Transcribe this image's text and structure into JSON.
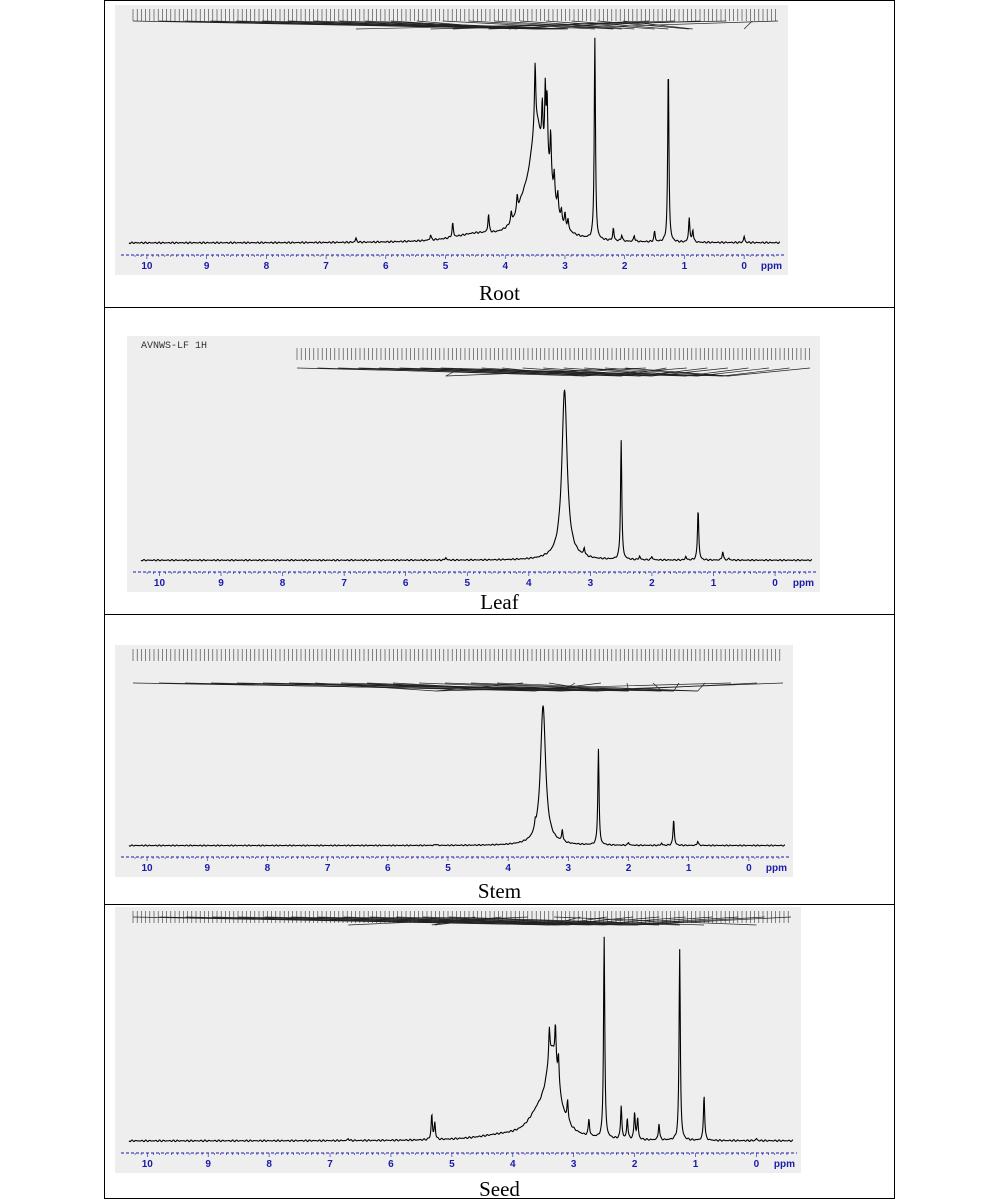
{
  "figure": {
    "colors": {
      "plot_bg": "#eeeeee",
      "trace": "#000000",
      "axis": "#1a1aa8",
      "panel_border": "#000000"
    }
  },
  "chart_data": [
    {
      "type": "line",
      "caption": "Root",
      "xlabel": "ppm",
      "xlim": [
        10.3,
        -0.6
      ],
      "x_ticks": [
        10,
        9,
        8,
        7,
        6,
        5,
        4,
        3,
        2,
        1,
        0
      ],
      "x_reversed": true,
      "grid": false,
      "baseline": 0.01,
      "broad": [
        {
          "x": 3.48,
          "h": 0.48,
          "w": 0.13
        },
        {
          "x": 3.28,
          "h": 0.2,
          "w": 0.14
        },
        {
          "x": 3.7,
          "h": 0.1,
          "w": 0.16
        },
        {
          "x": 4.5,
          "h": 0.035,
          "w": 0.45
        }
      ],
      "peaks": [
        {
          "x": 3.5,
          "h": 0.3
        },
        {
          "x": 3.38,
          "h": 0.22
        },
        {
          "x": 3.33,
          "h": 0.34
        },
        {
          "x": 3.3,
          "h": 0.31
        },
        {
          "x": 3.24,
          "h": 0.22
        },
        {
          "x": 3.18,
          "h": 0.12
        },
        {
          "x": 3.12,
          "h": 0.09
        },
        {
          "x": 3.06,
          "h": 0.05
        },
        {
          "x": 3.0,
          "h": 0.06
        },
        {
          "x": 2.95,
          "h": 0.05
        },
        {
          "x": 3.8,
          "h": 0.07
        },
        {
          "x": 3.9,
          "h": 0.05
        },
        {
          "x": 2.5,
          "h": 0.98
        },
        {
          "x": 2.19,
          "h": 0.06
        },
        {
          "x": 2.05,
          "h": 0.03
        },
        {
          "x": 1.84,
          "h": 0.03
        },
        {
          "x": 1.5,
          "h": 0.05
        },
        {
          "x": 1.27,
          "h": 0.85
        },
        {
          "x": 0.92,
          "h": 0.12
        },
        {
          "x": 0.86,
          "h": 0.06
        },
        {
          "x": 4.88,
          "h": 0.07
        },
        {
          "x": 5.25,
          "h": 0.025
        },
        {
          "x": 4.28,
          "h": 0.09
        },
        {
          "x": 6.5,
          "h": 0.02
        },
        {
          "x": 0.0,
          "h": 0.03
        }
      ],
      "header_text": "",
      "annotation_hint": "dense chemical-shift label strip (values illegible)"
    },
    {
      "type": "line",
      "caption": "Leaf",
      "xlabel": "ppm",
      "xlim": [
        10.3,
        -0.6
      ],
      "x_ticks": [
        10,
        9,
        8,
        7,
        6,
        5,
        4,
        3,
        2,
        1,
        0
      ],
      "x_reversed": true,
      "grid": false,
      "baseline": 0.01,
      "header_text": "AVNWS-LF  1H",
      "broad": [
        {
          "x": 3.42,
          "h": 0.93,
          "w": 0.05
        },
        {
          "x": 3.42,
          "h": 0.04,
          "w": 0.2
        }
      ],
      "peaks": [
        {
          "x": 2.5,
          "h": 0.68
        },
        {
          "x": 3.1,
          "h": 0.04
        },
        {
          "x": 2.2,
          "h": 0.02
        },
        {
          "x": 2.0,
          "h": 0.02
        },
        {
          "x": 1.45,
          "h": 0.02
        },
        {
          "x": 1.25,
          "h": 0.29
        },
        {
          "x": 0.85,
          "h": 0.05
        },
        {
          "x": 0.75,
          "h": 0.01
        },
        {
          "x": 5.35,
          "h": 0.015
        }
      ],
      "annotation_hint": "dense chemical-shift label strip (values illegible)"
    },
    {
      "type": "line",
      "caption": "Stem",
      "xlabel": "ppm",
      "xlim": [
        10.3,
        -0.6
      ],
      "x_ticks": [
        10,
        9,
        8,
        7,
        6,
        5,
        4,
        3,
        2,
        1,
        0
      ],
      "x_reversed": true,
      "grid": false,
      "baseline": 0.01,
      "header_text": "",
      "broad": [
        {
          "x": 3.42,
          "h": 0.92,
          "w": 0.05
        },
        {
          "x": 3.42,
          "h": 0.04,
          "w": 0.2
        }
      ],
      "peaks": [
        {
          "x": 2.5,
          "h": 0.66
        },
        {
          "x": 3.1,
          "h": 0.08
        },
        {
          "x": 3.55,
          "h": 0.05
        },
        {
          "x": 2.0,
          "h": 0.02
        },
        {
          "x": 1.45,
          "h": 0.015
        },
        {
          "x": 1.25,
          "h": 0.18
        },
        {
          "x": 0.85,
          "h": 0.03
        },
        {
          "x": 5.2,
          "h": 0.01
        }
      ],
      "annotation_hint": "dense chemical-shift label strip (values illegible)"
    },
    {
      "type": "line",
      "caption": "Seed",
      "xlabel": "ppm",
      "xlim": [
        10.3,
        -0.6
      ],
      "x_ticks": [
        10,
        9,
        8,
        7,
        6,
        5,
        4,
        3,
        2,
        1,
        0
      ],
      "x_reversed": true,
      "grid": false,
      "baseline": 0.01,
      "header_text": "",
      "broad": [
        {
          "x": 3.35,
          "h": 0.4,
          "w": 0.13
        },
        {
          "x": 3.6,
          "h": 0.08,
          "w": 0.2
        },
        {
          "x": 4.2,
          "h": 0.02,
          "w": 0.5
        }
      ],
      "peaks": [
        {
          "x": 3.4,
          "h": 0.15
        },
        {
          "x": 3.3,
          "h": 0.18
        },
        {
          "x": 3.25,
          "h": 0.14
        },
        {
          "x": 3.1,
          "h": 0.1
        },
        {
          "x": 2.75,
          "h": 0.08
        },
        {
          "x": 2.5,
          "h": 0.97
        },
        {
          "x": 2.22,
          "h": 0.16
        },
        {
          "x": 2.12,
          "h": 0.1
        },
        {
          "x": 2.0,
          "h": 0.13
        },
        {
          "x": 1.95,
          "h": 0.1
        },
        {
          "x": 1.6,
          "h": 0.08
        },
        {
          "x": 1.26,
          "h": 0.92
        },
        {
          "x": 0.86,
          "h": 0.22
        },
        {
          "x": 5.33,
          "h": 0.12
        },
        {
          "x": 5.28,
          "h": 0.08
        },
        {
          "x": 6.7,
          "h": 0.01
        },
        {
          "x": 0.0,
          "h": 0.01
        }
      ],
      "annotation_hint": "dense chemical-shift label strip (values illegible)"
    }
  ]
}
